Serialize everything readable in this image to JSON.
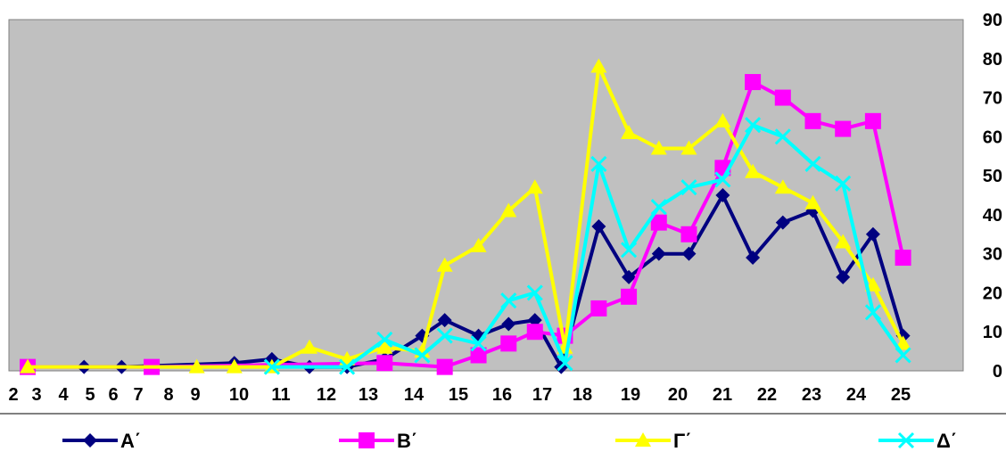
{
  "chart_data": {
    "type": "line",
    "title": "",
    "xlabel": "",
    "ylabel": "",
    "ylim": [
      0,
      90
    ],
    "y_ticks": [
      "0",
      "10",
      "20",
      "30",
      "40",
      "50",
      "60",
      "70",
      "80",
      "90"
    ],
    "x_tick_labels": [
      "2",
      "3",
      "4",
      "5",
      "6",
      "7",
      "8",
      "9",
      "10",
      "11",
      "12",
      "13",
      "14",
      "15",
      "16",
      "17",
      "18",
      "19",
      "20",
      "21",
      "22",
      "23",
      "24",
      "25"
    ],
    "grid": false,
    "plot_background": "#c0c0c0",
    "y_axis_position": "right",
    "legend_position": "bottom",
    "series": [
      {
        "name": "Α΄",
        "color": "#000080",
        "marker": "diamond",
        "points": [
          [
            4,
            1
          ],
          [
            5,
            1
          ],
          [
            8,
            2
          ],
          [
            9,
            3
          ],
          [
            10,
            1
          ],
          [
            11,
            1
          ],
          [
            12,
            3
          ],
          [
            13,
            9
          ],
          [
            13.6,
            13
          ],
          [
            14.5,
            9
          ],
          [
            15.3,
            12
          ],
          [
            16,
            13
          ],
          [
            16.7,
            1
          ],
          [
            17.7,
            37
          ],
          [
            18.5,
            24
          ],
          [
            19.3,
            30
          ],
          [
            20.1,
            30
          ],
          [
            21,
            45
          ],
          [
            21.8,
            29
          ],
          [
            22.6,
            38
          ],
          [
            23.4,
            41
          ],
          [
            24.2,
            24
          ],
          [
            25,
            35
          ],
          [
            25.8,
            9
          ]
        ]
      },
      {
        "name": "Β΄",
        "color": "#ff00ff",
        "marker": "square",
        "points": [
          [
            2.5,
            1
          ],
          [
            5.8,
            1
          ],
          [
            12,
            2
          ],
          [
            13.6,
            1
          ],
          [
            14.5,
            4
          ],
          [
            15.3,
            7
          ],
          [
            16,
            10
          ],
          [
            16.8,
            9
          ],
          [
            17.7,
            16
          ],
          [
            18.5,
            19
          ],
          [
            19.3,
            38
          ],
          [
            20.1,
            35
          ],
          [
            21,
            52
          ],
          [
            21.8,
            74
          ],
          [
            22.6,
            70
          ],
          [
            23.4,
            64
          ],
          [
            24.2,
            62
          ],
          [
            25,
            64
          ],
          [
            25.8,
            29
          ]
        ]
      },
      {
        "name": "Γ΄",
        "color": "#ffff00",
        "marker": "triangle",
        "points": [
          [
            2.5,
            1
          ],
          [
            7,
            1
          ],
          [
            8,
            1
          ],
          [
            9,
            1
          ],
          [
            10,
            6
          ],
          [
            11,
            3
          ],
          [
            12,
            6
          ],
          [
            13,
            5
          ],
          [
            13.6,
            27
          ],
          [
            14.5,
            32
          ],
          [
            15.3,
            41
          ],
          [
            16,
            47
          ],
          [
            16.8,
            6
          ],
          [
            17.7,
            78
          ],
          [
            18.5,
            61
          ],
          [
            19.3,
            57
          ],
          [
            20.1,
            57
          ],
          [
            21,
            64
          ],
          [
            21.8,
            51
          ],
          [
            22.6,
            47
          ],
          [
            23.4,
            43
          ],
          [
            24.2,
            33
          ],
          [
            25,
            22
          ],
          [
            25.8,
            7
          ]
        ]
      },
      {
        "name": "Δ΄",
        "color": "#00ffff",
        "marker": "x",
        "points": [
          [
            9,
            1
          ],
          [
            11,
            1
          ],
          [
            12,
            8
          ],
          [
            13,
            4
          ],
          [
            13.6,
            9
          ],
          [
            14.5,
            7
          ],
          [
            15.3,
            18
          ],
          [
            16,
            20
          ],
          [
            16.8,
            2
          ],
          [
            17.7,
            53
          ],
          [
            18.5,
            31
          ],
          [
            19.3,
            42
          ],
          [
            20.1,
            47
          ],
          [
            21,
            49
          ],
          [
            21.8,
            63
          ],
          [
            22.6,
            60
          ],
          [
            23.4,
            53
          ],
          [
            24.2,
            48
          ],
          [
            25,
            15
          ],
          [
            25.8,
            4
          ]
        ]
      }
    ]
  }
}
